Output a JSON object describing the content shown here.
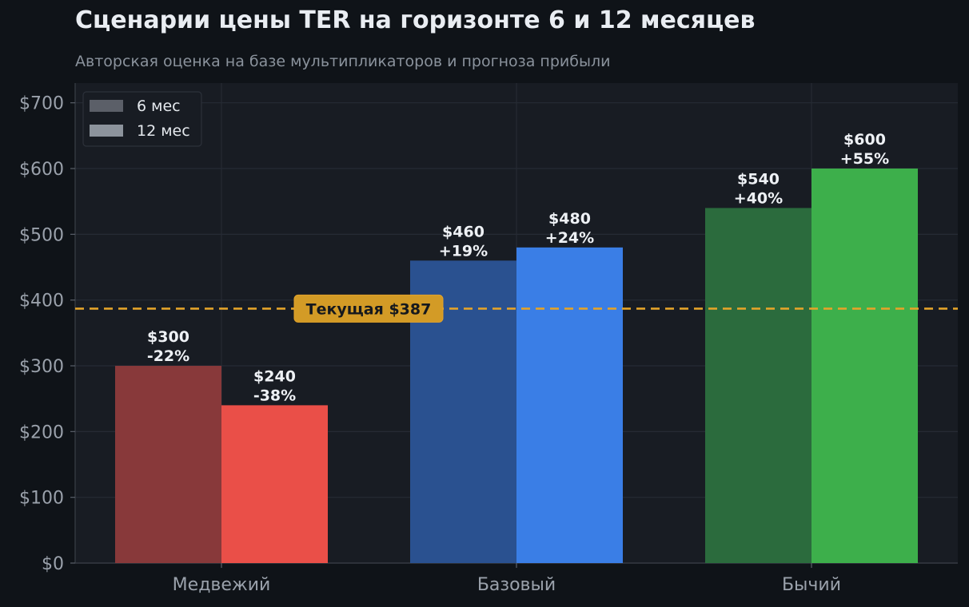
{
  "chart_data": {
    "type": "bar",
    "title": "Сценарии цены TER на горизонте 6 и 12 месяцев",
    "subtitle": "Авторская оценка на базе мультипликаторов и прогноза прибыли",
    "categories": [
      "Медвежий",
      "Базовый",
      "Бычий"
    ],
    "series": [
      {
        "name": "6 мес",
        "values": [
          300,
          460,
          540
        ],
        "value_labels": [
          "$300",
          "$460",
          "$540"
        ],
        "change_labels": [
          "-22%",
          "+19%",
          "+40%"
        ],
        "colors": [
          "#88393a",
          "#2a5190",
          "#2b6b3d"
        ]
      },
      {
        "name": "12 мес",
        "values": [
          240,
          480,
          600
        ],
        "value_labels": [
          "$240",
          "$480",
          "$600"
        ],
        "change_labels": [
          "-38%",
          "+24%",
          "+55%"
        ],
        "colors": [
          "#ea4f48",
          "#3a7ee6",
          "#3daf4b"
        ]
      }
    ],
    "legend_colors": [
      "#5b5f68",
      "#8c939c"
    ],
    "ylim": [
      0,
      730
    ],
    "yticks": [
      0,
      100,
      200,
      300,
      400,
      500,
      600,
      700
    ],
    "ytick_labels": [
      "$0",
      "$100",
      "$200",
      "$300",
      "$400",
      "$500",
      "$600",
      "$700"
    ],
    "reference_line": {
      "value": 387,
      "label": "Текущая $387",
      "color": "#e3a32a"
    },
    "grid": true,
    "legend_position": "top-left"
  }
}
